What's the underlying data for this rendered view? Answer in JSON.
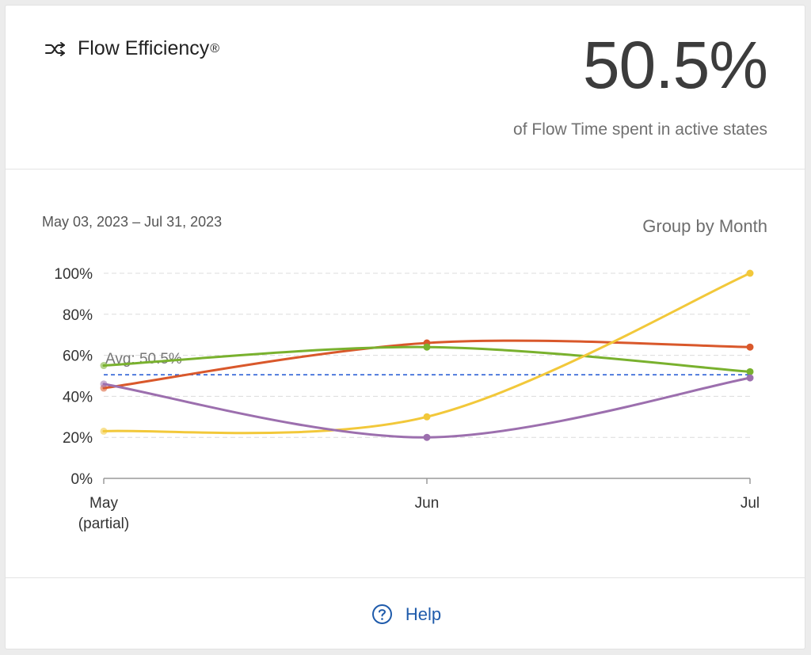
{
  "widget": {
    "title": "Flow Efficiency",
    "title_reg": "®",
    "title_icon": "flow-arrows-icon",
    "metric_value": "50.5%",
    "metric_caption": "of Flow Time spent in active states"
  },
  "controls": {
    "date_range": "May 03, 2023 – Jul 31, 2023",
    "group_by": "Group by Month"
  },
  "chart_data": {
    "type": "line",
    "categories": [
      "May",
      "Jun",
      "Jul"
    ],
    "category_sublabels": [
      "(partial)",
      "",
      ""
    ],
    "yticks": [
      "0%",
      "20%",
      "40%",
      "60%",
      "80%",
      "100%"
    ],
    "ylim": [
      0,
      100
    ],
    "grid": true,
    "smooth": true,
    "average": {
      "label": "Avg: 50.5%",
      "value": 50.5,
      "color": "#2f62d6"
    },
    "series": [
      {
        "color": "#d9582b",
        "values": [
          44,
          66,
          64
        ]
      },
      {
        "color": "#79b12e",
        "values": [
          55,
          64,
          52
        ]
      },
      {
        "color": "#f2c83a",
        "values": [
          23,
          30,
          100
        ]
      },
      {
        "color": "#9c6fae",
        "values": [
          46,
          20,
          49
        ]
      }
    ]
  },
  "footer": {
    "help_label": "Help",
    "help_icon": "question-circle-icon",
    "accent_color": "#1f5bab"
  }
}
